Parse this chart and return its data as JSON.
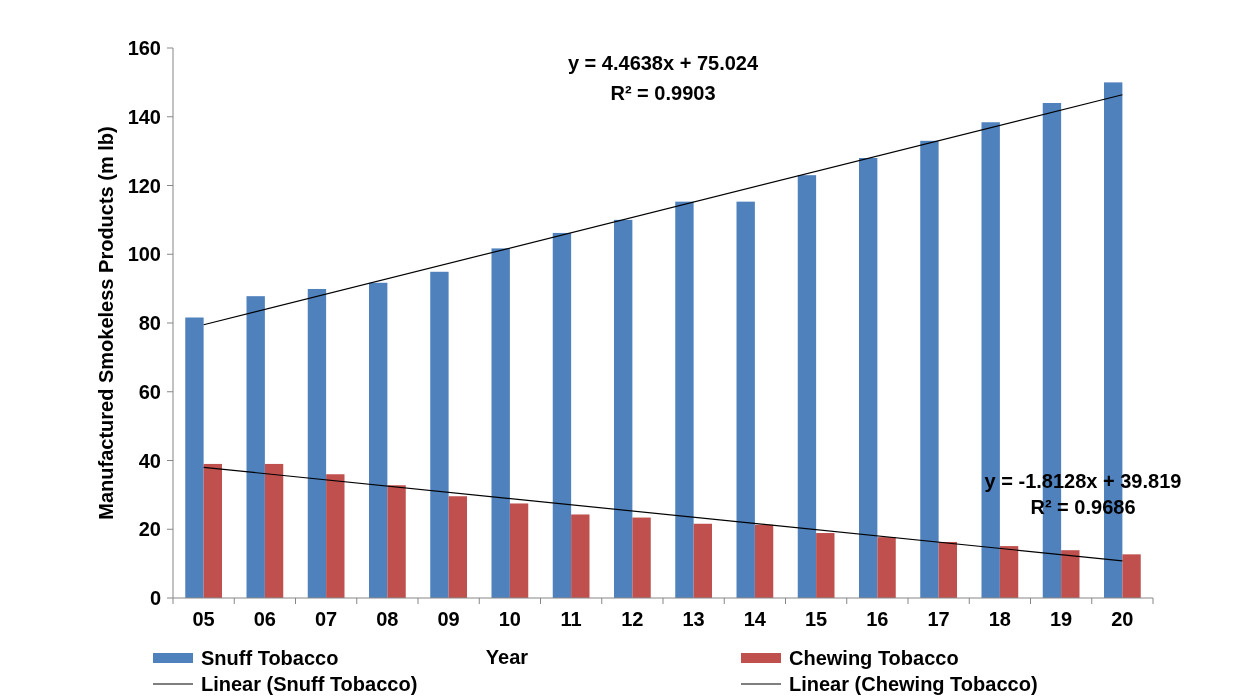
{
  "chart_data": {
    "type": "bar",
    "xlabel": "Year",
    "ylabel": "Manufactured Smokeless Products (m lb)",
    "categories": [
      "05",
      "06",
      "07",
      "08",
      "09",
      "10",
      "11",
      "12",
      "13",
      "14",
      "15",
      "16",
      "17",
      "18",
      "19",
      "20"
    ],
    "series": [
      {
        "name": "Snuff Tobacco",
        "color": "#4f81bd",
        "values": [
          81.6,
          87.8,
          89.9,
          91.7,
          94.9,
          101.7,
          106.2,
          110,
          115.3,
          115.3,
          123,
          128,
          133,
          138.4,
          144,
          150
        ]
      },
      {
        "name": "Chewing Tobacco",
        "color": "#c0504d",
        "values": [
          39,
          39,
          36,
          32.8,
          29.6,
          27.5,
          24.3,
          23.4,
          21.6,
          21.3,
          18.9,
          17.7,
          16.3,
          15.1,
          13.9,
          12.7
        ]
      },
      {
        "name": "Linear (Snuff Tobacco)",
        "type": "line",
        "color": "#000000",
        "x": [
          "05",
          "20"
        ],
        "values": [
          79.5,
          146.4
        ]
      },
      {
        "name": "Linear (Chewing Tobacco)",
        "type": "line",
        "color": "#000000",
        "x": [
          "05",
          "20"
        ],
        "values": [
          38.0,
          10.8
        ]
      }
    ],
    "ylim": [
      0,
      160
    ],
    "yticks": [
      0,
      20,
      40,
      60,
      80,
      100,
      120,
      140,
      160
    ],
    "legend": "bottom",
    "annotations": [
      "y = 4.4638x + 75.024",
      "R² = 0.9903",
      "y = -1.8128x + 39.819",
      "R² = 0.9686"
    ]
  }
}
